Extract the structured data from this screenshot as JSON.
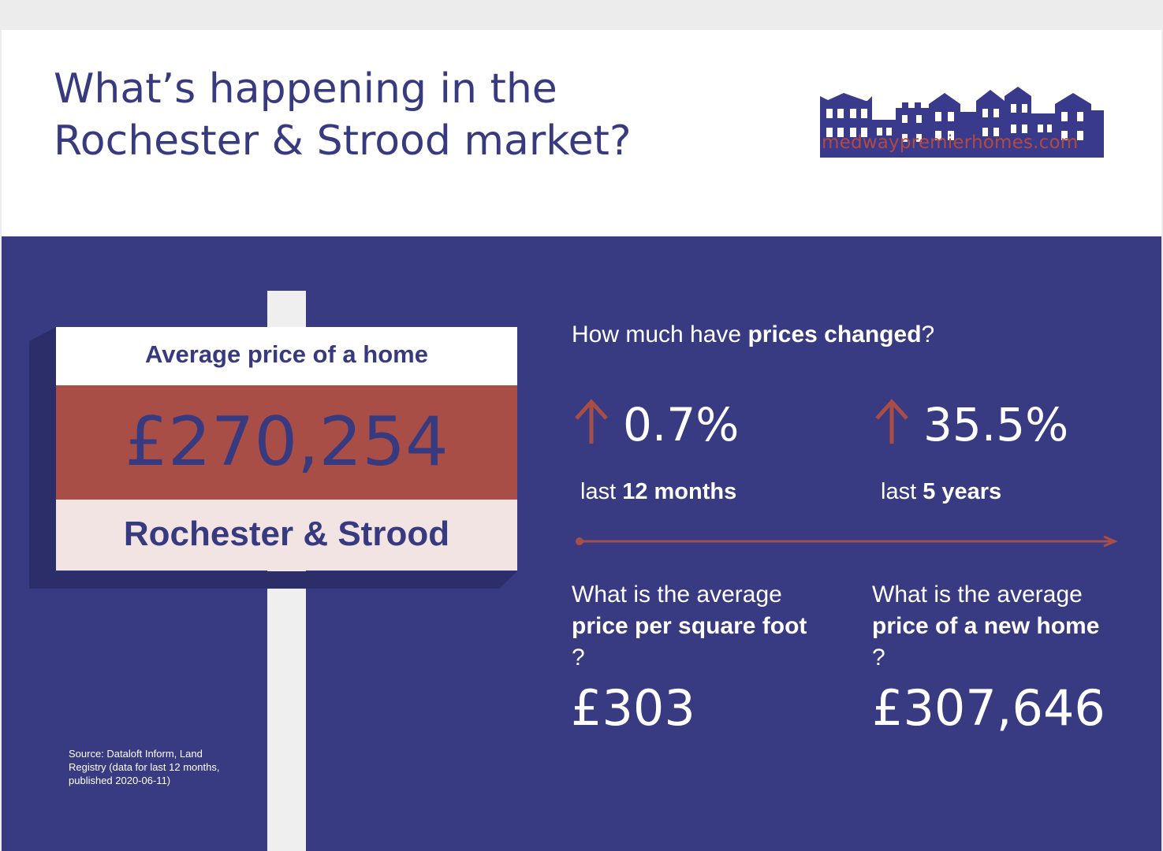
{
  "header": {
    "title_line1": "What’s happening in the",
    "title_line2": "Rochester & Strood market?",
    "logo_text": "medwaypremierhomes.com"
  },
  "sign": {
    "top_label": "Average price of a home",
    "price": "£270,254",
    "area": "Rochester & Strood"
  },
  "prices_changed": {
    "q_prefix": "How much have ",
    "q_bold": "prices changed",
    "q_suffix": "?",
    "items": [
      {
        "value": "0.7%",
        "period_prefix": "last ",
        "period_bold": "12 months",
        "direction": "up"
      },
      {
        "value": "35.5%",
        "period_prefix": "last ",
        "period_bold": "5 years",
        "direction": "up"
      }
    ]
  },
  "sqft": {
    "q_line1": "What is the average",
    "q_bold": "price per square foot",
    "q_suffix": "?",
    "value": "£303"
  },
  "new_home": {
    "q_line1": "What is the average",
    "q_bold": "price of a new home",
    "q_suffix": "?",
    "value": "£307,646"
  },
  "source": {
    "line1": "Source: Dataloft Inform, Land",
    "line2": "Registry (data for last 12 months,",
    "line3": "published 2020-06-11)"
  },
  "colors": {
    "navy": "#383a82",
    "brick": "#a94e47",
    "pale_pink": "#f3e4e4",
    "white": "#ffffff"
  },
  "icons": [
    "arrow-up-icon",
    "house-row-logo-icon"
  ]
}
